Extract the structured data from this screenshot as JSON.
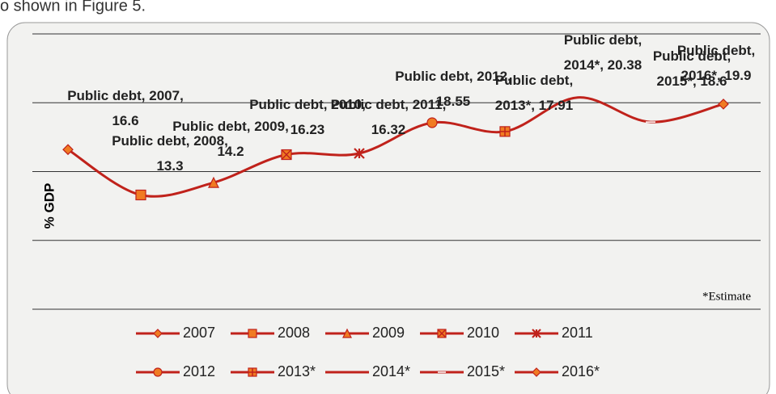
{
  "caption": "o shown in Figure 5.",
  "chart_data": {
    "type": "line",
    "y_label": "% GDP",
    "categories": [
      "2007",
      "2008",
      "2009",
      "2010",
      "2011",
      "2012",
      "2013*",
      "2014*",
      "2015*",
      "2016*"
    ],
    "series": [
      {
        "name": "Public debt",
        "color": "#c0221b",
        "marker_color": "#f07b22",
        "values": [
          16.6,
          13.3,
          14.2,
          16.23,
          16.32,
          18.55,
          17.91,
          20.38,
          18.6,
          19.9
        ],
        "value_labels": [
          "Public debt, 2007, 16.6",
          "Public debt, 2008, 13.3",
          "Public debt, 2009, 14.2",
          "Public debt, 2010, 16.23",
          "Public debt, 2011, 16.32",
          "Public debt, 2012, 18.55",
          "Public debt, 2013*, 17.91",
          "Public debt, 2014*, 20.38",
          "Public debt, 2015*, 18.6",
          "Public debt, 2016*, 19.9"
        ],
        "markers": [
          "diamond",
          "square",
          "triangle",
          "xsquare",
          "star",
          "circle",
          "plus",
          "none",
          "dash",
          "diamond"
        ]
      }
    ],
    "ylim": [
      5,
      25
    ],
    "yticks": [
      5,
      10,
      15,
      20,
      25
    ],
    "grid": true,
    "annotation": "*Estimate"
  }
}
